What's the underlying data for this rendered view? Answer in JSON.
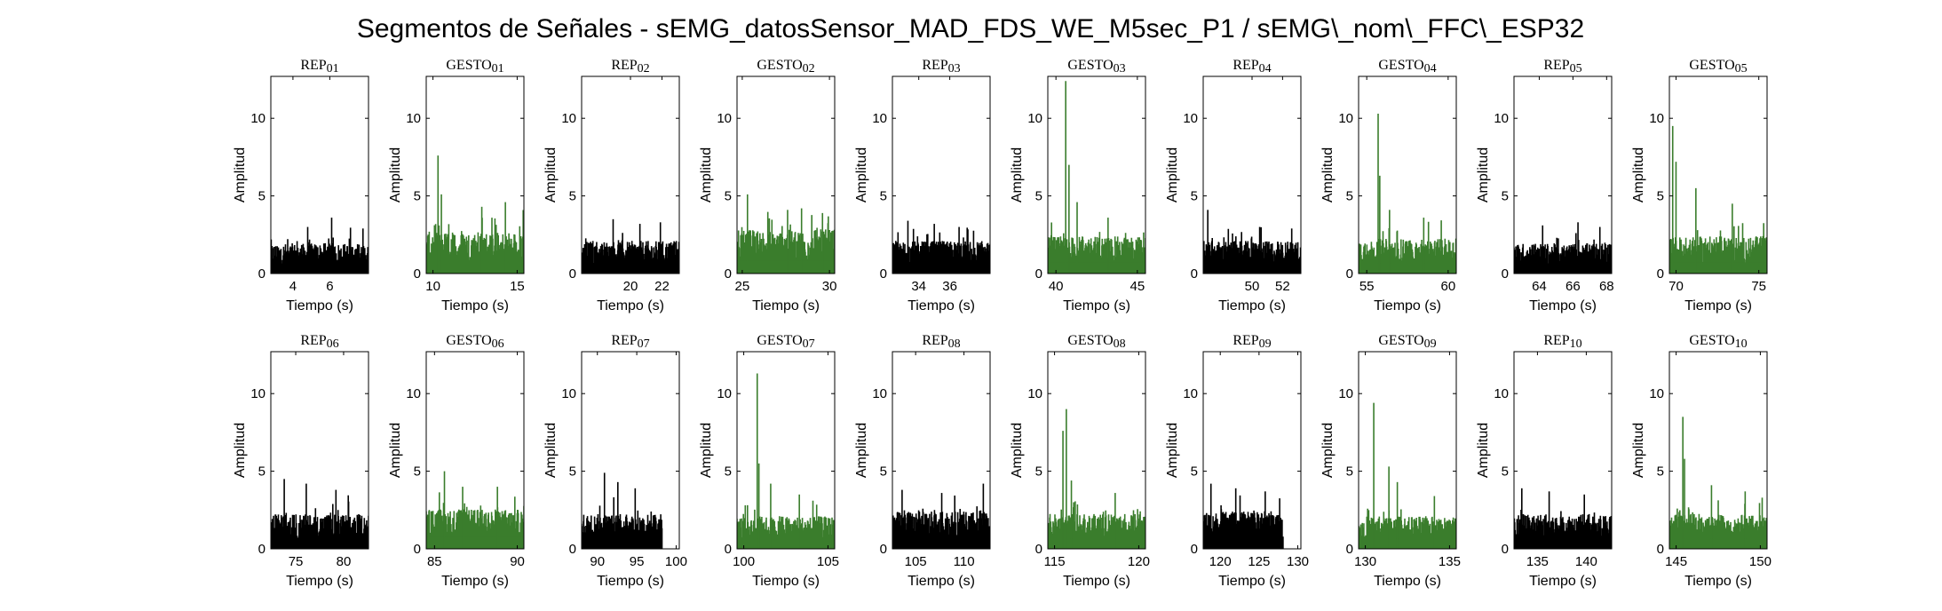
{
  "figure": {
    "title": "Segmentos de Señales - sEMG_datosSensor_MAD_FDS_WE_M5sec_P1 / sEMG\\_nom\\_FFC\\_ESP32",
    "xlabel": "Tiempo (s)",
    "ylabel": "Amplitud",
    "colors": {
      "rep": "#000000",
      "gesto": "#3a7d2c",
      "axes": "#000000"
    }
  },
  "chart_data": [
    {
      "type": "area",
      "title": "REP_01",
      "kind": "rep",
      "xlim": [
        2.8,
        8.1
      ],
      "ylim": [
        0,
        12.7
      ],
      "yticks": [
        0,
        5,
        10
      ],
      "xticks": [
        4,
        6
      ],
      "base": 1.3,
      "peaks": [
        [
          6.1,
          3.6
        ],
        [
          4.8,
          3.0
        ],
        [
          7.8,
          2.9
        ]
      ]
    },
    {
      "type": "area",
      "title": "GESTO_01",
      "kind": "gesto",
      "xlim": [
        9.6,
        15.4
      ],
      "ylim": [
        0,
        12.7
      ],
      "yticks": [
        0,
        5,
        10
      ],
      "xticks": [
        10,
        15
      ],
      "base": 1.8,
      "peaks": [
        [
          10.3,
          7.6
        ],
        [
          10.5,
          5.1
        ],
        [
          12.9,
          4.3
        ],
        [
          14.3,
          4.6
        ]
      ]
    },
    {
      "type": "area",
      "title": "REP_02",
      "kind": "rep",
      "xlim": [
        16.9,
        23.1
      ],
      "ylim": [
        0,
        12.7
      ],
      "yticks": [
        0,
        5,
        10
      ],
      "xticks": [
        20,
        22
      ],
      "base": 1.4,
      "peaks": [
        [
          18.9,
          3.5
        ],
        [
          20.6,
          3.2
        ],
        [
          21.9,
          3.3
        ]
      ]
    },
    {
      "type": "area",
      "title": "GESTO_02",
      "kind": "gesto",
      "xlim": [
        24.7,
        30.3
      ],
      "ylim": [
        0,
        12.7
      ],
      "yticks": [
        0,
        5,
        10
      ],
      "xticks": [
        25,
        30
      ],
      "base": 1.9,
      "peaks": [
        [
          25.3,
          5.1
        ],
        [
          27.6,
          4.1
        ],
        [
          28.4,
          4.2
        ],
        [
          29.6,
          3.9
        ]
      ]
    },
    {
      "type": "area",
      "title": "REP_03",
      "kind": "rep",
      "xlim": [
        32.3,
        38.6
      ],
      "ylim": [
        0,
        12.7
      ],
      "yticks": [
        0,
        5,
        10
      ],
      "xticks": [
        34,
        36
      ],
      "base": 1.4,
      "peaks": [
        [
          33.3,
          3.4
        ],
        [
          35.0,
          3.2
        ],
        [
          36.6,
          3.0
        ]
      ]
    },
    {
      "type": "area",
      "title": "GESTO_03",
      "kind": "gesto",
      "xlim": [
        39.5,
        45.5
      ],
      "ylim": [
        0,
        12.7
      ],
      "yticks": [
        0,
        5,
        10
      ],
      "xticks": [
        40,
        45
      ],
      "base": 1.6,
      "peaks": [
        [
          40.6,
          12.4
        ],
        [
          40.8,
          7.0
        ],
        [
          41.3,
          4.6
        ],
        [
          43.2,
          3.6
        ]
      ]
    },
    {
      "type": "area",
      "title": "REP_04",
      "kind": "rep",
      "xlim": [
        46.8,
        53.2
      ],
      "ylim": [
        0,
        12.7
      ],
      "yticks": [
        0,
        5,
        10
      ],
      "xticks": [
        50,
        52
      ],
      "base": 1.4,
      "peaks": [
        [
          47.1,
          4.1
        ],
        [
          50.5,
          3.0
        ],
        [
          52.6,
          2.9
        ]
      ]
    },
    {
      "type": "area",
      "title": "GESTO_04",
      "kind": "gesto",
      "xlim": [
        54.5,
        60.5
      ],
      "ylim": [
        0,
        12.7
      ],
      "yticks": [
        0,
        5,
        10
      ],
      "xticks": [
        55,
        60
      ],
      "base": 1.5,
      "peaks": [
        [
          55.7,
          10.3
        ],
        [
          55.8,
          6.3
        ],
        [
          56.4,
          4.1
        ],
        [
          58.5,
          3.6
        ]
      ]
    },
    {
      "type": "area",
      "title": "REP_05",
      "kind": "rep",
      "xlim": [
        62.5,
        68.3
      ],
      "ylim": [
        0,
        12.7
      ],
      "yticks": [
        0,
        5,
        10
      ],
      "xticks": [
        64,
        66,
        68
      ],
      "base": 1.3,
      "peaks": [
        [
          64.2,
          3.1
        ],
        [
          66.3,
          3.3
        ],
        [
          67.6,
          3.0
        ]
      ]
    },
    {
      "type": "area",
      "title": "GESTO_05",
      "kind": "gesto",
      "xlim": [
        69.6,
        75.5
      ],
      "ylim": [
        0,
        12.7
      ],
      "yticks": [
        0,
        5,
        10
      ],
      "xticks": [
        70,
        75
      ],
      "base": 1.6,
      "peaks": [
        [
          69.8,
          9.5
        ],
        [
          70.0,
          7.2
        ],
        [
          71.2,
          5.5
        ],
        [
          73.4,
          4.5
        ]
      ]
    },
    {
      "type": "area",
      "title": "REP_06",
      "kind": "rep",
      "xlim": [
        72.4,
        82.6
      ],
      "ylim": [
        0,
        12.7
      ],
      "yticks": [
        0,
        5,
        10
      ],
      "xticks": [
        75,
        80
      ],
      "base": 1.5,
      "peaks": [
        [
          73.8,
          4.5
        ],
        [
          76.1,
          4.2
        ],
        [
          79.2,
          3.8
        ]
      ]
    },
    {
      "type": "area",
      "title": "GESTO_06",
      "kind": "gesto",
      "xlim": [
        84.5,
        90.4
      ],
      "ylim": [
        0,
        12.7
      ],
      "yticks": [
        0,
        5,
        10
      ],
      "xticks": [
        85,
        90
      ],
      "base": 1.7,
      "peaks": [
        [
          85.6,
          5.0
        ],
        [
          86.7,
          4.0
        ],
        [
          88.8,
          4.0
        ]
      ]
    },
    {
      "type": "area",
      "title": "REP_07",
      "kind": "rep",
      "xlim": [
        88.0,
        100.4
      ],
      "ylim": [
        0,
        12.7
      ],
      "yticks": [
        0,
        5,
        10
      ],
      "xticks": [
        90,
        95,
        100
      ],
      "base": 1.5,
      "end": 98.2,
      "peaks": [
        [
          90.9,
          4.9
        ],
        [
          92.6,
          4.3
        ],
        [
          94.8,
          3.9
        ]
      ]
    },
    {
      "type": "area",
      "title": "GESTO_07",
      "kind": "gesto",
      "xlim": [
        99.6,
        105.4
      ],
      "ylim": [
        0,
        12.7
      ],
      "yticks": [
        0,
        5,
        10
      ],
      "xticks": [
        100,
        105
      ],
      "base": 1.4,
      "peaks": [
        [
          100.8,
          11.3
        ],
        [
          100.9,
          5.5
        ],
        [
          101.6,
          4.2
        ],
        [
          103.3,
          3.5
        ]
      ]
    },
    {
      "type": "area",
      "title": "REP_08",
      "kind": "rep",
      "xlim": [
        102.6,
        112.7
      ],
      "ylim": [
        0,
        12.7
      ],
      "yticks": [
        0,
        5,
        10
      ],
      "xticks": [
        105,
        110
      ],
      "base": 1.6,
      "peaks": [
        [
          103.6,
          3.8
        ],
        [
          107.7,
          3.6
        ],
        [
          112.0,
          4.2
        ]
      ]
    },
    {
      "type": "area",
      "title": "GESTO_08",
      "kind": "gesto",
      "xlim": [
        114.6,
        120.4
      ],
      "ylim": [
        0,
        12.7
      ],
      "yticks": [
        0,
        5,
        10
      ],
      "xticks": [
        115,
        120
      ],
      "base": 1.5,
      "peaks": [
        [
          115.7,
          9.0
        ],
        [
          115.5,
          7.6
        ],
        [
          116.0,
          4.4
        ],
        [
          118.6,
          3.6
        ]
      ]
    },
    {
      "type": "area",
      "title": "REP_09",
      "kind": "rep",
      "xlim": [
        117.8,
        130.4
      ],
      "ylim": [
        0,
        12.7
      ],
      "yticks": [
        0,
        5,
        10
      ],
      "xticks": [
        120,
        125,
        130
      ],
      "base": 1.6,
      "end": 128.1,
      "peaks": [
        [
          118.8,
          4.2
        ],
        [
          122.0,
          3.9
        ],
        [
          125.8,
          3.7
        ]
      ]
    },
    {
      "type": "area",
      "title": "GESTO_09",
      "kind": "gesto",
      "xlim": [
        129.6,
        135.4
      ],
      "ylim": [
        0,
        12.7
      ],
      "yticks": [
        0,
        5,
        10
      ],
      "xticks": [
        130,
        135
      ],
      "base": 1.4,
      "peaks": [
        [
          130.5,
          9.4
        ],
        [
          131.4,
          5.3
        ],
        [
          131.9,
          4.3
        ],
        [
          134.1,
          3.4
        ]
      ]
    },
    {
      "type": "area",
      "title": "REP_10",
      "kind": "rep",
      "xlim": [
        132.6,
        142.6
      ],
      "ylim": [
        0,
        12.7
      ],
      "yticks": [
        0,
        5,
        10
      ],
      "xticks": [
        135,
        140
      ],
      "base": 1.5,
      "peaks": [
        [
          133.4,
          3.9
        ],
        [
          136.2,
          3.7
        ],
        [
          139.8,
          3.5
        ]
      ]
    },
    {
      "type": "area",
      "title": "GESTO_10",
      "kind": "gesto",
      "xlim": [
        144.6,
        150.4
      ],
      "ylim": [
        0,
        12.7
      ],
      "yticks": [
        0,
        5,
        10
      ],
      "xticks": [
        145,
        150
      ],
      "base": 1.5,
      "peaks": [
        [
          145.4,
          8.5
        ],
        [
          145.5,
          5.8
        ],
        [
          147.1,
          4.1
        ],
        [
          149.1,
          3.7
        ]
      ]
    }
  ]
}
